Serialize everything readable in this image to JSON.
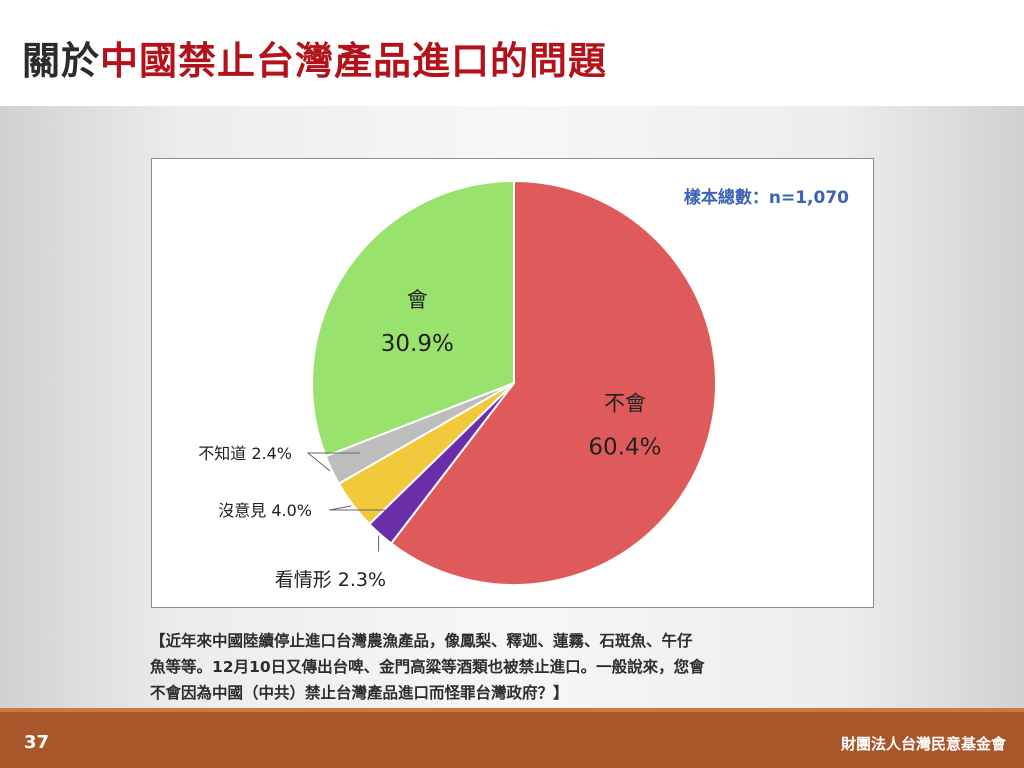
{
  "slide": {
    "title_prefix": "關於",
    "title_main": "中國禁止台灣產品進口的問題",
    "sample_size": "樣本總數：n=1,070",
    "question_lines": [
      "【近年來中國陸續停止進口台灣農漁產品，像鳳梨、釋迦、蓮霧、石斑魚、午仔",
      "魚等等。12月10日又傳出台啤、金門高粱等酒類也被禁止進口。一般說來，您會",
      "不會因為中國（中共）禁止台灣產品進口而怪罪台灣政府？】"
    ],
    "page_number": "37",
    "organization": "財團法人台灣民意基金會"
  },
  "chart_data": {
    "type": "pie",
    "start": "12 o'clock",
    "direction": "clockwise",
    "slices": [
      {
        "label": "不會",
        "value": 60.4,
        "value_text": "60.4%",
        "color": "#df5b5b"
      },
      {
        "label": "看情形",
        "value": 2.3,
        "value_text": "2.3%",
        "color": "#6a2ea8"
      },
      {
        "label": "沒意見",
        "value": 4.0,
        "value_text": "4.0%",
        "color": "#f2c93b"
      },
      {
        "label": "不知道",
        "value": 2.4,
        "value_text": "2.4%",
        "color": "#bdbdbd"
      },
      {
        "label": "會",
        "value": 30.9,
        "value_text": "30.9%",
        "color": "#99e26e"
      }
    ]
  }
}
